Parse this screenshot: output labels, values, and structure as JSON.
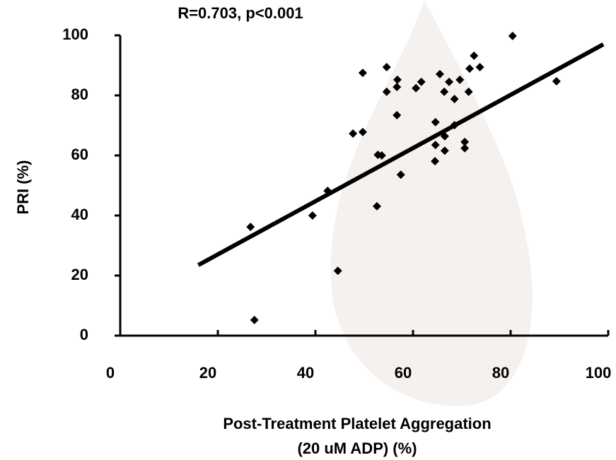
{
  "chart_data": {
    "type": "scatter",
    "title": "R=0.703, p<0.001",
    "x_label": [
      "Post-Treatment Platelet Aggregation",
      "(20 uM ADP) (%)"
    ],
    "y_label": "PRI (%)",
    "color": "#000000",
    "xlim": [
      0,
      100
    ],
    "xticks": [
      0,
      20,
      40,
      60,
      80,
      100
    ],
    "ylim": [
      0,
      100
    ],
    "yticks": [
      0,
      20,
      40,
      60,
      80,
      100
    ],
    "series": [
      {
        "x": [
          26.7,
          27.5,
          39.4,
          42.5,
          44.6,
          47.7,
          49.7,
          49.7,
          52.6,
          52.8,
          53.6,
          54.6,
          54.6,
          56.7,
          56.8,
          56.7,
          57.5,
          60.6,
          61.7,
          64.6,
          64.5,
          64.6,
          65.5,
          66.4,
          66.5,
          66.5,
          67.4,
          68.5,
          68.5,
          69.6,
          70.6,
          70.6,
          71.4,
          71.6,
          72.5,
          73.7,
          80.4,
          89.4
        ],
        "values": [
          36.2,
          5.2,
          40,
          48.2,
          21.6,
          67.3,
          67.8,
          87.5,
          43.1,
          60.2,
          60,
          89.4,
          81.2,
          82.8,
          85.2,
          73.4,
          53.6,
          82.4,
          84.5,
          71.1,
          58.1,
          63.5,
          87.1,
          81.2,
          66.4,
          61.6,
          84.5,
          78.8,
          70.1,
          85.2,
          64.5,
          62.4,
          81.2,
          88.9,
          93.2,
          89.4,
          99.8,
          84.7
        ]
      }
    ],
    "trendline": {
      "x": [
        16,
        99
      ],
      "values": [
        23.5,
        97
      ]
    }
  }
}
